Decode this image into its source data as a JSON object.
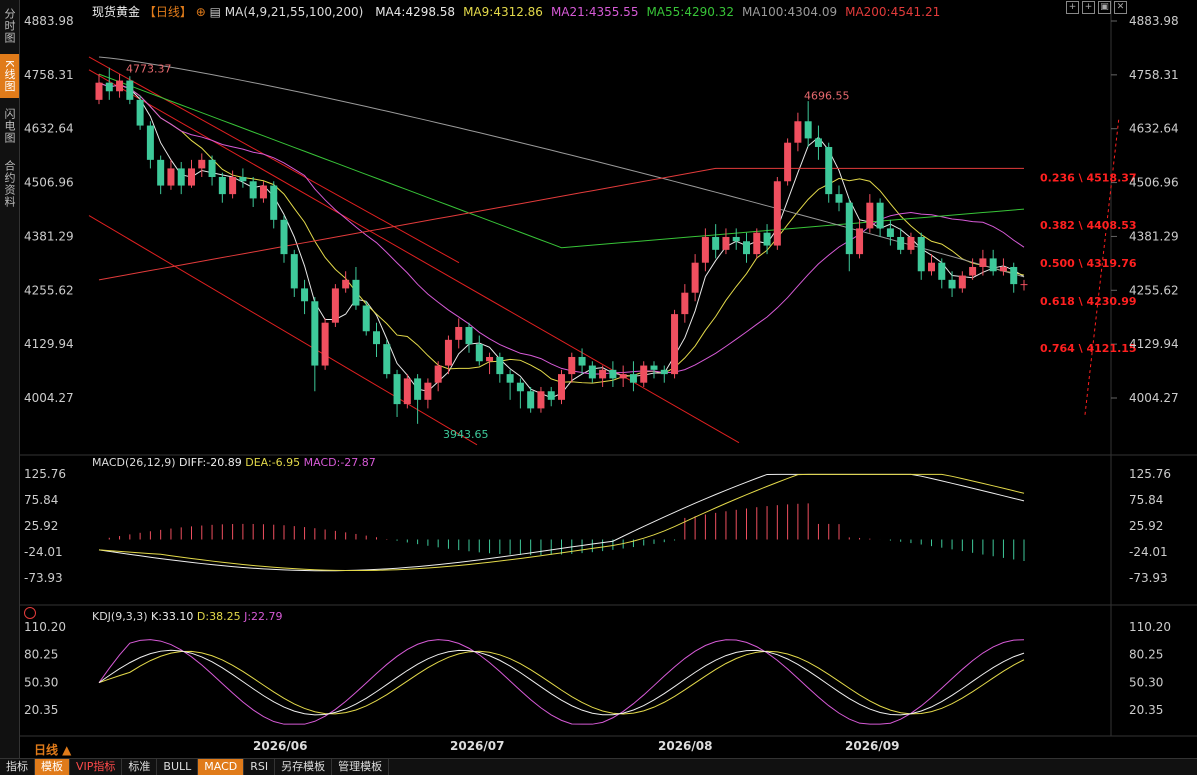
{
  "left_tabs": [
    "分时图",
    "K线图",
    "闪电图",
    "合约资料"
  ],
  "active_tab": 1,
  "header": {
    "symbol": "现货黄金",
    "period": "【日线】",
    "ma_label": "MA(4,9,21,55,100,200)",
    "ma_values": [
      {
        "text": "MA4:4298.58",
        "color": "#e8e8e8"
      },
      {
        "text": "MA9:4312.86",
        "color": "#e3d94a"
      },
      {
        "text": "MA21:4355.55",
        "color": "#d65ad6"
      },
      {
        "text": "MA55:4290.32",
        "color": "#38c438"
      },
      {
        "text": "MA100:4304.09",
        "color": "#9a9a9a"
      },
      {
        "text": "MA200:4541.21",
        "color": "#e23b3b"
      }
    ]
  },
  "price_axis": {
    "ticks": [
      "4883.98",
      "4758.31",
      "4632.64",
      "4506.96",
      "4381.29",
      "4255.62",
      "4129.94",
      "4004.27"
    ]
  },
  "annotations": {
    "high1": "4773.37",
    "high2": "4696.55",
    "low": "3943.65"
  },
  "fib_levels": [
    {
      "label": "0.236 \\ 4518.37",
      "value": 4518.37
    },
    {
      "label": "0.382 \\ 4408.53",
      "value": 4408.53
    },
    {
      "label": "0.500 \\ 4319.76",
      "value": 4319.76
    },
    {
      "label": "0.618 \\ 4230.99",
      "value": 4230.99
    },
    {
      "label": "0.764 \\ 4121.15",
      "value": 4121.15
    }
  ],
  "macd": {
    "title": "MACD(26,12,9)",
    "diff": "DIFF:-20.89",
    "dea": "DEA:-6.95",
    "macd": "MACD:-27.87",
    "ticks": [
      "125.76",
      "75.84",
      "25.92",
      "-24.01",
      "-73.93"
    ]
  },
  "kdj": {
    "title": "KDJ(9,3,3)",
    "k": "K:33.10",
    "d": "D:38.25",
    "j": "J:22.79",
    "ticks": [
      "110.20",
      "80.25",
      "50.30",
      "20.35"
    ]
  },
  "date_axis": {
    "labels": [
      "2026/06",
      "2026/07",
      "2026/08",
      "2026/09"
    ]
  },
  "period_button": "日线 ▲",
  "toolbar": [
    "指标",
    "模板",
    "VIP指标",
    "标准",
    "BULL",
    "MACD",
    "RSI",
    "另存模板",
    "管理模板"
  ],
  "toolbar_active": [
    1,
    5
  ],
  "colors": {
    "up": "#ef4f5f",
    "down": "#3ec99a",
    "ma4": "#e8e8e8",
    "ma9": "#e3d94a",
    "ma21": "#d65ad6",
    "ma55": "#38c438",
    "ma100": "#9a9a9a",
    "ma200": "#e23b3b",
    "fib": "#ff2020",
    "channel": "#e02020"
  },
  "chart_data": {
    "type": "candlestick",
    "ylim": [
      3880,
      4900
    ],
    "candles": [
      [
        4700,
        4740,
        4690,
        4760
      ],
      [
        4740,
        4720,
        4700,
        4775
      ],
      [
        4720,
        4745,
        4705,
        4760
      ],
      [
        4745,
        4700,
        4690,
        4755
      ],
      [
        4700,
        4640,
        4630,
        4710
      ],
      [
        4640,
        4560,
        4540,
        4650
      ],
      [
        4560,
        4500,
        4480,
        4570
      ],
      [
        4500,
        4540,
        4490,
        4560
      ],
      [
        4540,
        4500,
        4480,
        4555
      ],
      [
        4500,
        4540,
        4495,
        4560
      ],
      [
        4540,
        4560,
        4520,
        4575
      ],
      [
        4560,
        4520,
        4500,
        4570
      ],
      [
        4520,
        4480,
        4460,
        4530
      ],
      [
        4480,
        4520,
        4470,
        4535
      ],
      [
        4520,
        4510,
        4495,
        4540
      ],
      [
        4510,
        4470,
        4450,
        4520
      ],
      [
        4470,
        4500,
        4460,
        4510
      ],
      [
        4500,
        4420,
        4400,
        4510
      ],
      [
        4420,
        4340,
        4320,
        4430
      ],
      [
        4340,
        4260,
        4240,
        4350
      ],
      [
        4260,
        4230,
        4200,
        4280
      ],
      [
        4230,
        4080,
        4020,
        4240
      ],
      [
        4080,
        4180,
        4070,
        4190
      ],
      [
        4180,
        4260,
        4170,
        4270
      ],
      [
        4260,
        4280,
        4250,
        4300
      ],
      [
        4280,
        4220,
        4210,
        4310
      ],
      [
        4220,
        4160,
        4150,
        4230
      ],
      [
        4160,
        4130,
        4100,
        4180
      ],
      [
        4130,
        4060,
        4050,
        4140
      ],
      [
        4060,
        3990,
        3960,
        4070
      ],
      [
        3990,
        4050,
        3980,
        4060
      ],
      [
        4050,
        4000,
        3944,
        4060
      ],
      [
        4000,
        4040,
        3980,
        4050
      ],
      [
        4040,
        4080,
        4020,
        4090
      ],
      [
        4080,
        4140,
        4060,
        4150
      ],
      [
        4140,
        4170,
        4120,
        4190
      ],
      [
        4170,
        4130,
        4110,
        4180
      ],
      [
        4130,
        4090,
        4080,
        4150
      ],
      [
        4090,
        4100,
        4060,
        4110
      ],
      [
        4100,
        4060,
        4040,
        4110
      ],
      [
        4060,
        4040,
        4000,
        4070
      ],
      [
        4040,
        4020,
        3980,
        4050
      ],
      [
        4020,
        3980,
        3970,
        4030
      ],
      [
        3980,
        4020,
        3970,
        4030
      ],
      [
        4020,
        4000,
        3985,
        4030
      ],
      [
        4000,
        4060,
        3990,
        4070
      ],
      [
        4060,
        4100,
        4040,
        4110
      ],
      [
        4100,
        4080,
        4060,
        4120
      ],
      [
        4080,
        4050,
        4040,
        4090
      ],
      [
        4050,
        4070,
        4030,
        4080
      ],
      [
        4070,
        4050,
        4030,
        4090
      ],
      [
        4050,
        4060,
        4030,
        4080
      ],
      [
        4060,
        4040,
        4020,
        4090
      ],
      [
        4040,
        4080,
        4030,
        4090
      ],
      [
        4080,
        4070,
        4050,
        4090
      ],
      [
        4070,
        4060,
        4040,
        4080
      ],
      [
        4060,
        4200,
        4050,
        4210
      ],
      [
        4200,
        4250,
        4180,
        4270
      ],
      [
        4250,
        4320,
        4230,
        4340
      ],
      [
        4320,
        4380,
        4300,
        4400
      ],
      [
        4380,
        4350,
        4330,
        4410
      ],
      [
        4350,
        4380,
        4340,
        4400
      ],
      [
        4380,
        4370,
        4350,
        4400
      ],
      [
        4370,
        4340,
        4320,
        4390
      ],
      [
        4340,
        4390,
        4330,
        4400
      ],
      [
        4390,
        4360,
        4340,
        4410
      ],
      [
        4360,
        4510,
        4350,
        4520
      ],
      [
        4510,
        4600,
        4500,
        4610
      ],
      [
        4600,
        4650,
        4580,
        4670
      ],
      [
        4650,
        4610,
        4590,
        4697
      ],
      [
        4610,
        4590,
        4560,
        4640
      ],
      [
        4590,
        4480,
        4460,
        4600
      ],
      [
        4480,
        4460,
        4440,
        4500
      ],
      [
        4460,
        4340,
        4300,
        4470
      ],
      [
        4340,
        4400,
        4330,
        4420
      ],
      [
        4400,
        4460,
        4390,
        4480
      ],
      [
        4460,
        4400,
        4380,
        4470
      ],
      [
        4400,
        4380,
        4360,
        4420
      ],
      [
        4380,
        4350,
        4340,
        4400
      ],
      [
        4350,
        4380,
        4340,
        4390
      ],
      [
        4380,
        4300,
        4280,
        4390
      ],
      [
        4300,
        4320,
        4290,
        4340
      ],
      [
        4320,
        4280,
        4260,
        4330
      ],
      [
        4280,
        4260,
        4240,
        4300
      ],
      [
        4260,
        4290,
        4250,
        4300
      ],
      [
        4290,
        4310,
        4280,
        4330
      ],
      [
        4310,
        4330,
        4290,
        4350
      ],
      [
        4330,
        4300,
        4290,
        4350
      ],
      [
        4300,
        4310,
        4290,
        4330
      ],
      [
        4310,
        4270,
        4250,
        4320
      ],
      [
        4270,
        4270,
        4255,
        4280
      ]
    ]
  }
}
